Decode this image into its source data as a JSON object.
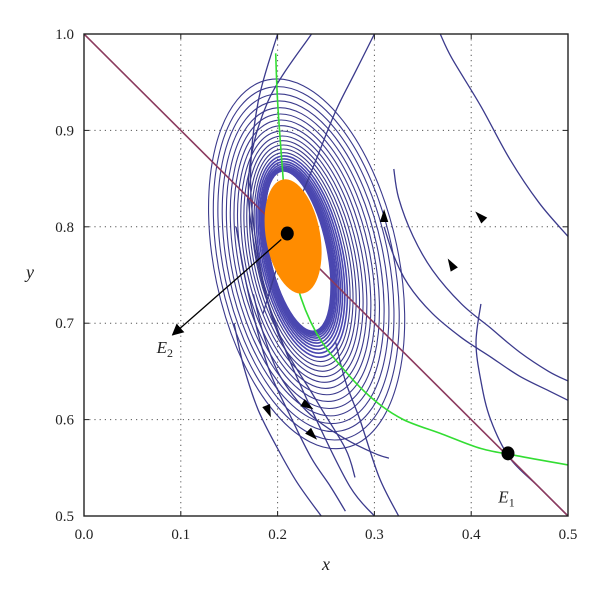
{
  "chart_data": {
    "type": "line",
    "title": "",
    "xlabel": "x",
    "ylabel": "y",
    "xlim": [
      0.0,
      0.5
    ],
    "ylim": [
      0.5,
      1.0
    ],
    "xticks": [
      0.0,
      0.1,
      0.2,
      0.3,
      0.4,
      0.5
    ],
    "yticks": [
      0.5,
      0.6,
      0.7,
      0.8,
      0.9,
      1.0
    ],
    "xtick_labels": [
      "0.0",
      "0.1",
      "0.2",
      "0.3",
      "0.4",
      "0.5"
    ],
    "ytick_labels": [
      "0.5",
      "0.6",
      "0.7",
      "0.8",
      "0.9",
      "1.0"
    ],
    "grid": "dotted",
    "colors": {
      "trajectory": "#3b3a8c",
      "dense_band": "#4a47b0",
      "nullcline_straight": "#8b3a5e",
      "nullcline_curve": "#33dd33",
      "attractor": "#ff8c00",
      "equilibrium": "#000000"
    },
    "series": [
      {
        "role": "nullcline",
        "style": "straight",
        "x": [
          0.0,
          0.5
        ],
        "y": [
          1.0,
          0.5
        ]
      },
      {
        "role": "nullcline",
        "style": "curve",
        "x": [
          0.198,
          0.2,
          0.205,
          0.21,
          0.22,
          0.24,
          0.27,
          0.3,
          0.33,
          0.37,
          0.41,
          0.45,
          0.5
        ],
        "y": [
          0.98,
          0.93,
          0.86,
          0.8,
          0.74,
          0.69,
          0.65,
          0.62,
          0.6,
          0.585,
          0.57,
          0.562,
          0.553
        ]
      }
    ],
    "trajectories": [
      {
        "x": [
          0.3,
          0.28,
          0.26,
          0.24,
          0.22,
          0.2,
          0.185
        ],
        "y": [
          1.0,
          0.96,
          0.92,
          0.87,
          0.82,
          0.76,
          0.71
        ]
      },
      {
        "x": [
          0.368,
          0.38,
          0.41,
          0.44,
          0.47,
          0.5
        ],
        "y": [
          1.0,
          0.975,
          0.925,
          0.87,
          0.825,
          0.79
        ]
      },
      {
        "x": [
          0.31,
          0.32,
          0.335,
          0.36,
          0.39,
          0.42,
          0.45,
          0.48,
          0.5
        ],
        "y": [
          0.8,
          0.77,
          0.74,
          0.71,
          0.685,
          0.665,
          0.645,
          0.63,
          0.62
        ]
      },
      {
        "x": [
          0.32,
          0.325,
          0.34,
          0.36,
          0.39,
          0.42,
          0.45,
          0.48,
          0.5
        ],
        "y": [
          0.86,
          0.83,
          0.79,
          0.755,
          0.72,
          0.695,
          0.67,
          0.65,
          0.64
        ]
      },
      {
        "x": [
          0.235,
          0.19,
          0.17,
          0.18,
          0.205,
          0.24,
          0.275,
          0.3
        ],
        "y": [
          1.0,
          0.93,
          0.85,
          0.76,
          0.68,
          0.6,
          0.53,
          0.5
        ]
      },
      {
        "x": [
          0.2,
          0.18,
          0.172,
          0.18,
          0.2,
          0.24,
          0.27,
          0.28
        ],
        "y": [
          1.0,
          0.93,
          0.85,
          0.77,
          0.69,
          0.62,
          0.57,
          0.54
        ]
      },
      {
        "x": [
          0.155,
          0.165,
          0.18,
          0.2,
          0.22,
          0.245
        ],
        "y": [
          0.7,
          0.655,
          0.61,
          0.57,
          0.535,
          0.5
        ]
      },
      {
        "x": [
          0.175,
          0.185,
          0.2,
          0.22,
          0.24,
          0.27,
          0.3,
          0.315
        ],
        "y": [
          0.73,
          0.69,
          0.65,
          0.62,
          0.6,
          0.58,
          0.565,
          0.56
        ]
      },
      {
        "x": [
          0.157,
          0.17,
          0.19,
          0.215,
          0.235,
          0.255,
          0.27
        ],
        "y": [
          0.8,
          0.73,
          0.655,
          0.6,
          0.56,
          0.53,
          0.505
        ]
      },
      {
        "x": [
          0.325,
          0.305,
          0.285,
          0.27,
          0.26
        ],
        "y": [
          0.5,
          0.54,
          0.6,
          0.64,
          0.68
        ]
      },
      {
        "x": [
          0.5,
          0.47,
          0.44,
          0.42,
          0.41,
          0.405,
          0.41
        ],
        "y": [
          0.5,
          0.53,
          0.56,
          0.6,
          0.64,
          0.68,
          0.72
        ]
      }
    ],
    "arrows": [
      {
        "x": 0.31,
        "y": 0.81,
        "dx": 0.0,
        "dy": 1.0
      },
      {
        "x": 0.41,
        "y": 0.81,
        "dx": -1.0,
        "dy": 1.0
      },
      {
        "x": 0.38,
        "y": 0.76,
        "dx": -0.6,
        "dy": 1.0
      },
      {
        "x": 0.19,
        "y": 0.61,
        "dx": 0.4,
        "dy": -1.0
      },
      {
        "x": 0.23,
        "y": 0.615,
        "dx": 1.0,
        "dy": -0.6
      },
      {
        "x": 0.235,
        "y": 0.585,
        "dx": 1.0,
        "dy": -1.0
      }
    ],
    "limit_cycles": {
      "center": [
        0.221,
        0.775
      ],
      "rx_min": 0.03,
      "rx_max": 0.095,
      "ry_min": 0.085,
      "ry_max": 0.195,
      "count": 26
    },
    "attractor_region": {
      "center": [
        0.216,
        0.79
      ],
      "rx": 0.028,
      "ry": 0.06
    },
    "equilibria": [
      {
        "name": "E",
        "sub": "2",
        "x": 0.21,
        "y": 0.793,
        "label_x": 0.075,
        "label_y": 0.69
      },
      {
        "name": "E",
        "sub": "1",
        "x": 0.438,
        "y": 0.565,
        "label_x": 0.428,
        "label_y": 0.535
      }
    ]
  }
}
